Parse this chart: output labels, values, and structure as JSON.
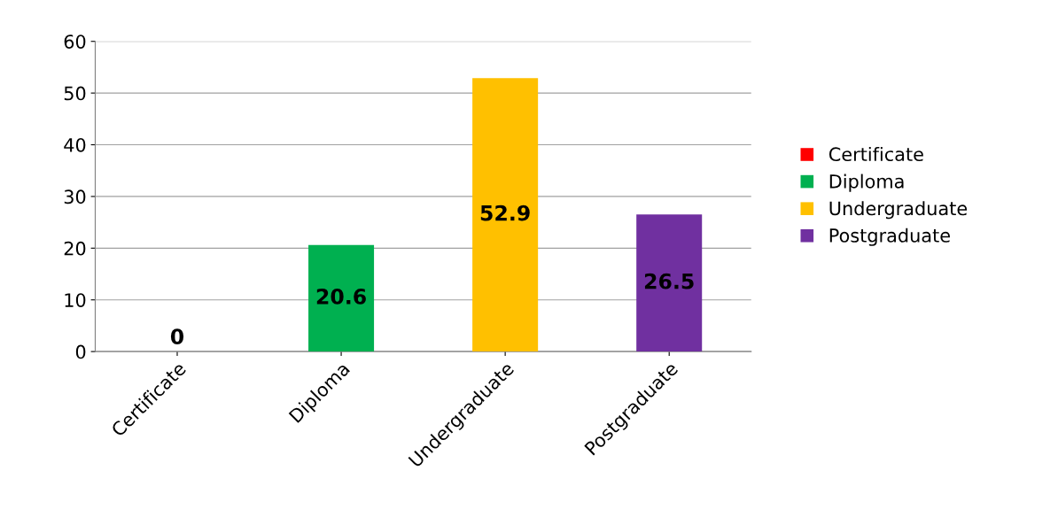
{
  "chart_data": {
    "type": "bar",
    "categories": [
      "Certificate",
      "Diploma",
      "Undergraduate",
      "Postgraduate"
    ],
    "series": [
      {
        "name": "Certificate",
        "color": "#ff0000",
        "values": [
          0,
          null,
          null,
          null
        ]
      },
      {
        "name": "Diploma",
        "color": "#00b050",
        "values": [
          null,
          20.6,
          null,
          null
        ]
      },
      {
        "name": "Undergraduate",
        "color": "#ffc000",
        "values": [
          null,
          null,
          52.9,
          null
        ]
      },
      {
        "name": "Postgraduate",
        "color": "#7030a0",
        "values": [
          null,
          null,
          null,
          26.5
        ]
      }
    ],
    "ylim": [
      0,
      60
    ],
    "yticks": [
      0,
      10,
      20,
      30,
      40,
      50,
      60
    ],
    "grid": "y",
    "legend": "right",
    "data_labels": true
  }
}
